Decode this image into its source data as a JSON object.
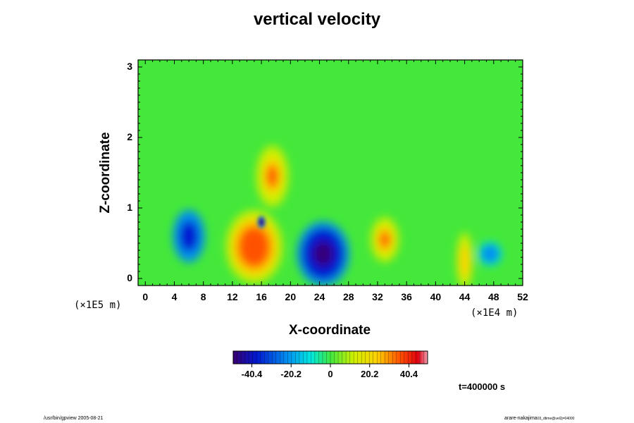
{
  "chart_data": {
    "type": "heatmap",
    "title": "vertical velocity",
    "xlabel": "X-coordinate",
    "ylabel": "Z-coordinate",
    "x_scale_label": "(×1E4 m)",
    "y_scale_label": "(×1E5 m)",
    "xlim": [
      -1,
      52
    ],
    "ylim": [
      -0.1,
      3.1
    ],
    "x_ticks": [
      0,
      4,
      8,
      12,
      16,
      20,
      24,
      28,
      32,
      36,
      40,
      44,
      48,
      52
    ],
    "y_ticks": [
      0,
      1,
      2,
      3
    ],
    "colorbar": {
      "min": -50,
      "max": 50,
      "tick_values": [
        -40.4,
        -20.2,
        0,
        20.2,
        40.4
      ],
      "tick_labels": [
        "-40.4",
        "-20.2",
        "0",
        "20.2",
        "40.4"
      ]
    },
    "features": [
      {
        "x": 15,
        "z": 0.45,
        "value": 45
      },
      {
        "x": 33,
        "z": 0.55,
        "value": 38
      },
      {
        "x": 17.5,
        "z": 1.45,
        "value": 40
      },
      {
        "x": 44,
        "z": 0.25,
        "value": 35
      },
      {
        "x": 24.5,
        "z": 0.35,
        "value": -38
      },
      {
        "x": 6,
        "z": 0.6,
        "value": -35
      },
      {
        "x": 47.5,
        "z": 0.35,
        "value": -20
      },
      {
        "x": 16,
        "z": 0.8,
        "value": -48
      }
    ]
  },
  "annotations": {
    "time": "t=400000 s",
    "footer_left": "/usr/bin/gpview 2005-08-21",
    "footer_right_main": "arare-nakajima",
    "footer_right_sub": "03_dtime@vel2j=04000"
  }
}
